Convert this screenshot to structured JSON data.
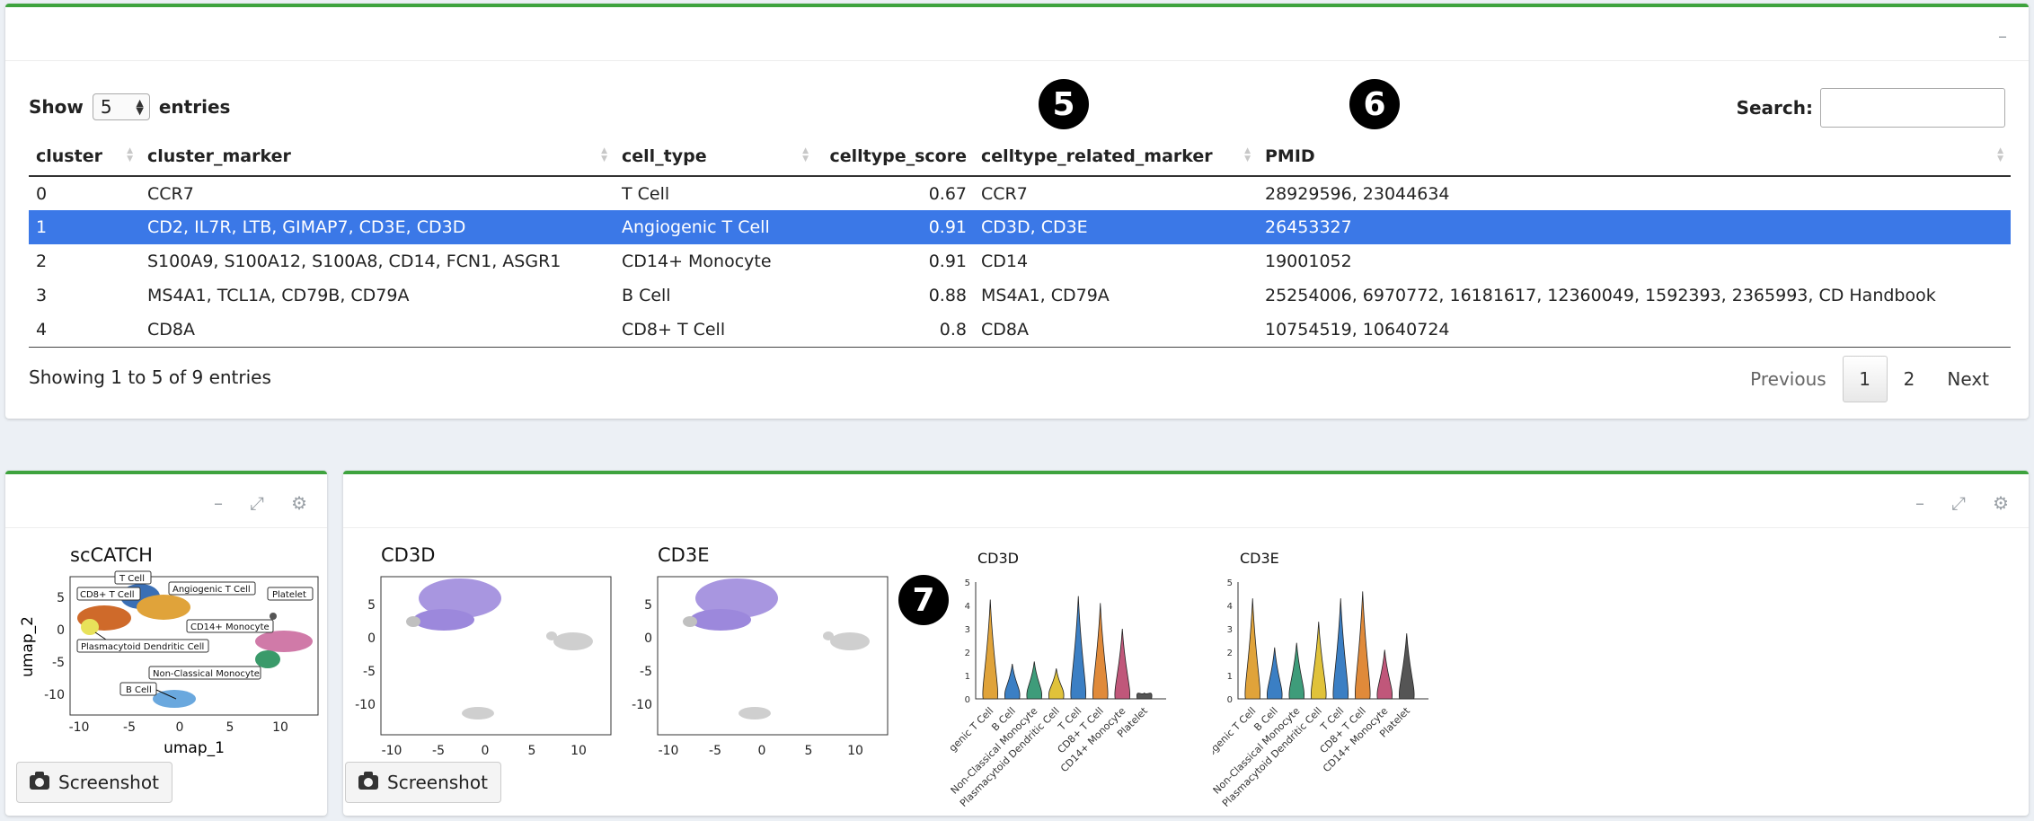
{
  "table_panel": {
    "show_label": "Show",
    "entries_label": "entries",
    "page_length": "5",
    "search_label": "Search:",
    "search_value": "",
    "columns": [
      "cluster",
      "cluster_marker",
      "cell_type",
      "celltype_score",
      "celltype_related_marker",
      "PMID"
    ],
    "rows": [
      [
        "0",
        "CCR7",
        "T Cell",
        "0.67",
        "CCR7",
        "28929596, 23044634"
      ],
      [
        "1",
        "CD2, IL7R, LTB, GIMAP7, CD3E, CD3D",
        "Angiogenic T Cell",
        "0.91",
        "CD3D, CD3E",
        "26453327"
      ],
      [
        "2",
        "S100A9, S100A12, S100A8, CD14, FCN1, ASGR1",
        "CD14+ Monocyte",
        "0.91",
        "CD14",
        "19001052"
      ],
      [
        "3",
        "MS4A1, TCL1A, CD79B, CD79A",
        "B Cell",
        "0.88",
        "MS4A1, CD79A",
        "25254006, 6970772, 16181617, 12360049, 1592393, 2365993, CD Handbook"
      ],
      [
        "4",
        "CD8A",
        "CD8+ T Cell",
        "0.8",
        "CD8A",
        "10754519, 10640724"
      ]
    ],
    "selected_row": 1,
    "info": "Showing 1 to 5 of 9 entries",
    "pagination": {
      "previous": "Previous",
      "pages": [
        "1",
        "2"
      ],
      "next": "Next"
    }
  },
  "badges": [
    "5",
    "6",
    "7"
  ],
  "umap_panel": {
    "title": "scCATCH",
    "xlabel": "umap_1",
    "ylabel": "umap_2",
    "x_ticks": [
      "-10",
      "-5",
      "0",
      "5",
      "10"
    ],
    "y_ticks": [
      "5",
      "0",
      "-5",
      "-10"
    ],
    "cluster_labels": [
      "T Cell",
      "CD8+ T Cell",
      "Angiogenic T Cell",
      "Platelet",
      "CD14+ Monocyte",
      "Plasmacytoid Dendritic Cell",
      "Non-Classical Monocyte",
      "B Cell"
    ],
    "screenshot_label": "Screenshot"
  },
  "feature_panel": {
    "feature_plots": [
      {
        "title": "CD3D"
      },
      {
        "title": "CD3E"
      }
    ],
    "x_ticks": [
      "-10",
      "-5",
      "0",
      "5",
      "10"
    ],
    "y_ticks": [
      "5",
      "0",
      "-5",
      "-10"
    ],
    "violin_plots": [
      {
        "title": "CD3D",
        "y_ticks": [
          "5",
          "4",
          "3",
          "2",
          "1",
          "0"
        ]
      },
      {
        "title": "CD3E",
        "y_ticks": [
          "5",
          "4",
          "3",
          "2",
          "1",
          "0"
        ]
      }
    ],
    "violin_categories_1": [
      "genic T Cell",
      "B Cell",
      "Non-Classical Monocyte",
      "Plasmacytoid Dendritic Cell",
      "T Cell",
      "CD8+ T Cell",
      "CD14+ Monocyte",
      "Platelet"
    ],
    "violin_categories_2": [
      "Angiogenic T Cell",
      "B Cell",
      "Non-Classical Monocyte",
      "Plasmacytoid Dendritic Cell",
      "T Cell",
      "CD8+ T Cell",
      "CD14+ Monocyte",
      "Platelet"
    ],
    "violin_colors": [
      "#e0a33a",
      "#3b7fc4",
      "#3e9c7a",
      "#e0c23a",
      "#3b7fc4",
      "#e08a3a",
      "#c0577a",
      "#555555"
    ],
    "screenshot_label": "Screenshot"
  }
}
